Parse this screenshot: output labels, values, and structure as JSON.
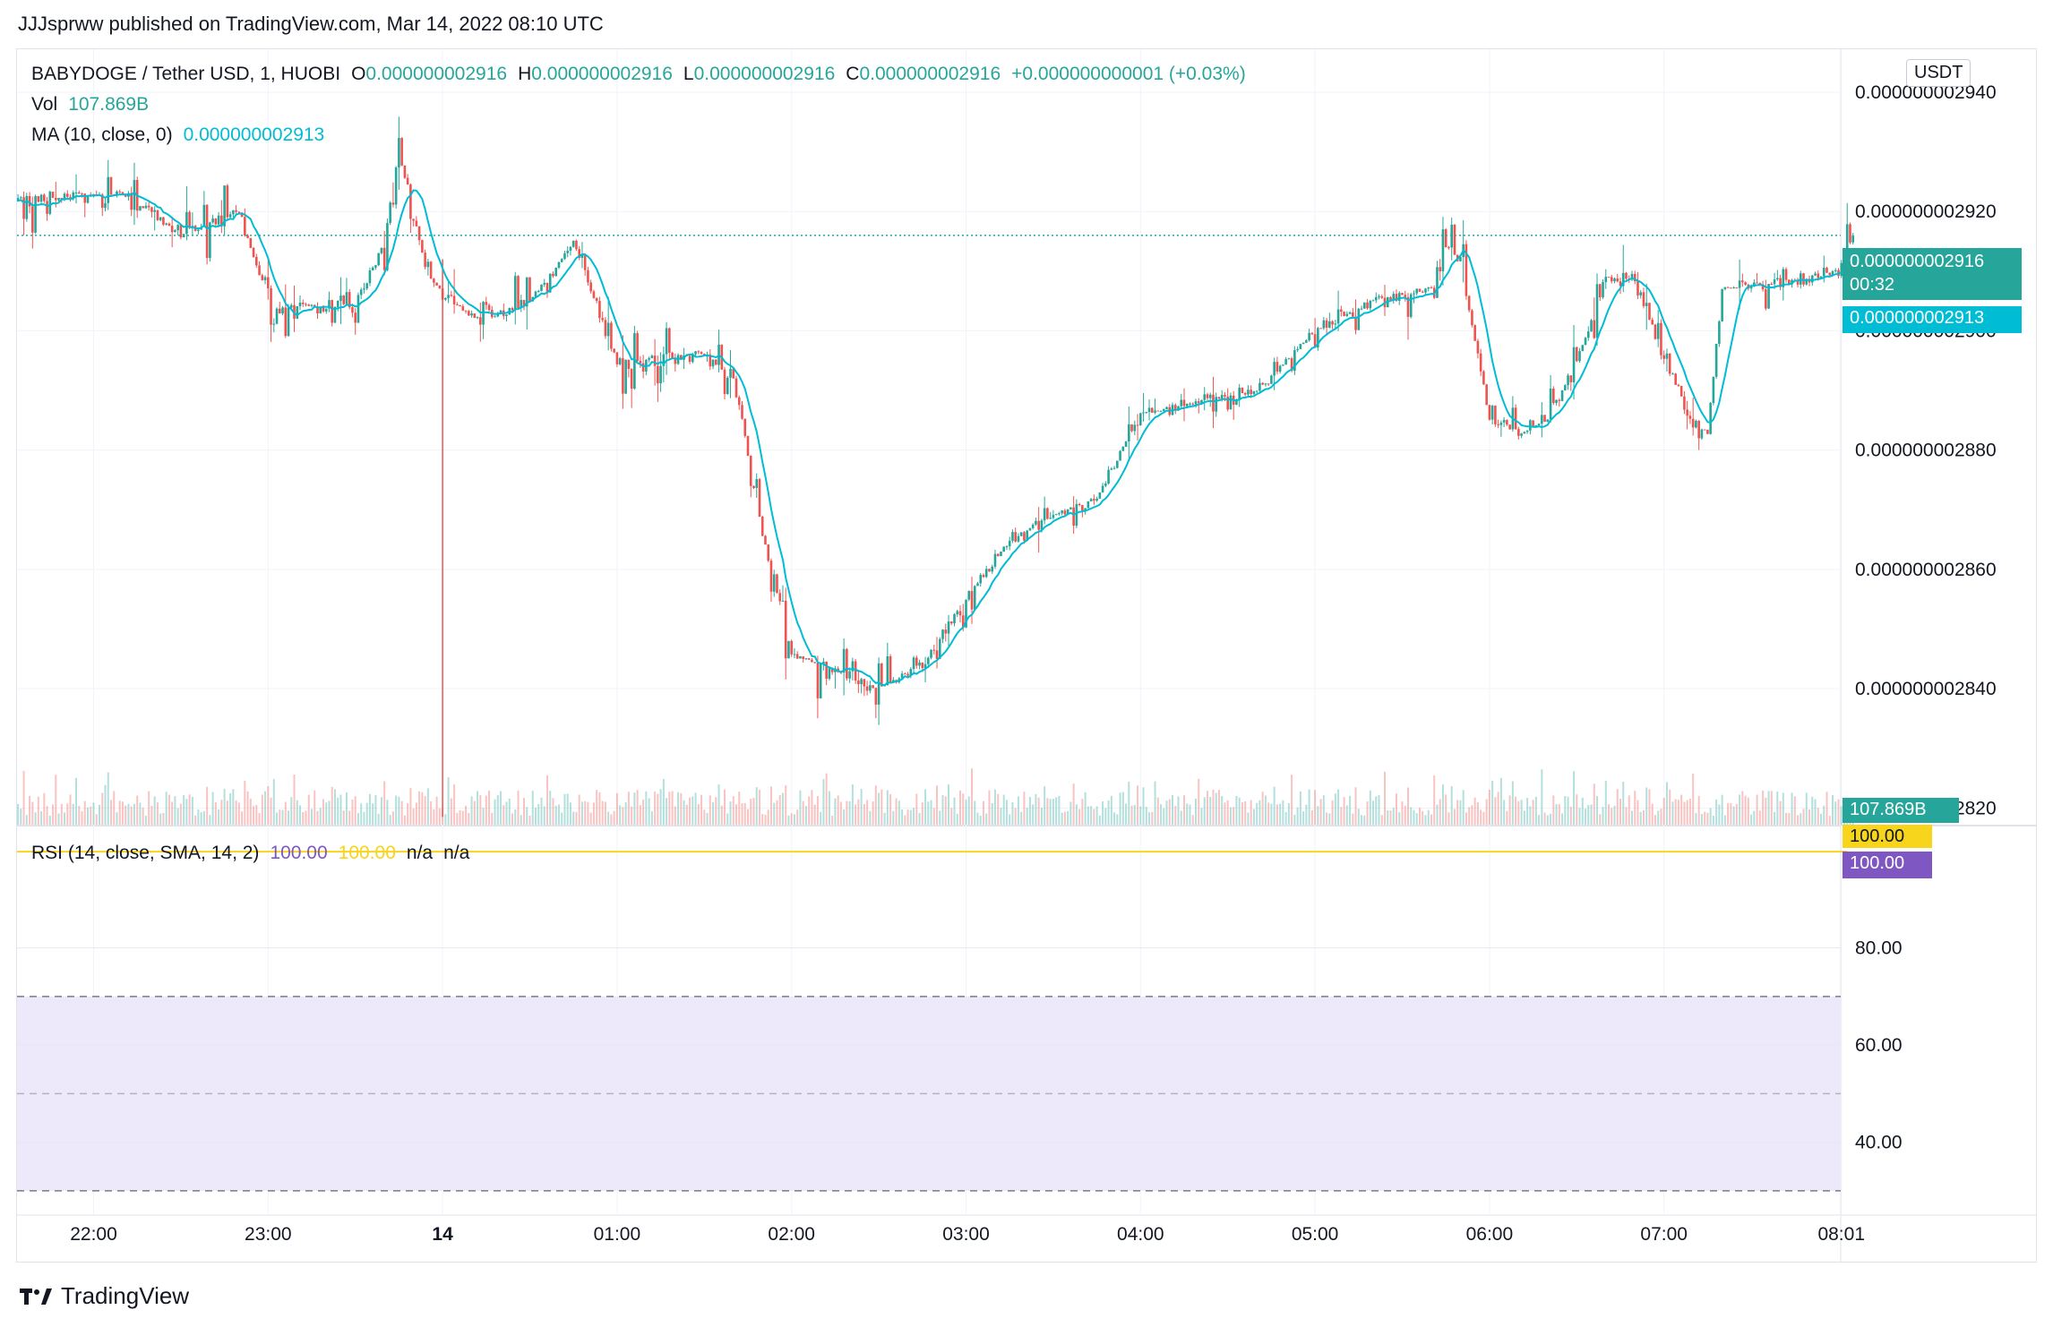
{
  "header": {
    "text": "JJJsprww published on TradingView.com, Mar 14, 2022 08:10 UTC"
  },
  "legend": {
    "symbol": "BABYDOGE / Tether USD, 1, HUOBI",
    "o_label": "O",
    "o_value": "0.000000002916",
    "h_label": "H",
    "h_value": "0.000000002916",
    "l_label": "L",
    "l_value": "0.000000002916",
    "c_label": "C",
    "c_value": "0.000000002916",
    "change": "+0.000000000001 (+0.03%)",
    "vol_label": "Vol",
    "vol_value": "107.869B",
    "ma_label": "MA (10, close, 0)",
    "ma_value": "0.000000002913",
    "rsi_label": "RSI (14, close, SMA, 14, 2)",
    "rsi_value": "100.00",
    "rsi_sma_value": "100.00",
    "rsi_na1": "n/a",
    "rsi_na2": "n/a"
  },
  "tags": {
    "price": "0.000000002916",
    "countdown": "00:32",
    "ma": "0.000000002913",
    "volume": "107.869B",
    "rsi_sma": "100.00",
    "rsi": "100.00"
  },
  "currency_button": "USDT",
  "brand": "TradingView",
  "colors": {
    "up": "#26a69a",
    "down": "#ef5350",
    "ma": "#00bcd4",
    "rsi": "#7e57c2",
    "rsi_sma": "#f7d51d",
    "band": "#ede9fa"
  },
  "chart_data": [
    {
      "type": "candlestick",
      "title": "BABYDOGE / Tether USD, 1, HUOBI",
      "x_ticks": [
        "22:00",
        "23:00",
        "14",
        "01:00",
        "02:00",
        "03:00",
        "04:00",
        "05:00",
        "06:00",
        "07:00",
        "08:01"
      ],
      "y_ticks": [
        "0.000000002940",
        "0.000000002920",
        "0.000000002900",
        "0.000000002880",
        "0.000000002860",
        "0.000000002840",
        "0.000000002820"
      ],
      "ylim": [
        2.8175e-09,
        2.9475e-09
      ],
      "price_path": {
        "times": [
          "21:35",
          "22:10",
          "22:30",
          "22:50",
          "23:00",
          "23:30",
          "23:40",
          "23:45",
          "23:55",
          "00:10",
          "00:30",
          "00:45",
          "01:00",
          "01:30",
          "01:40",
          "01:50",
          "02:00",
          "02:15",
          "02:30",
          "02:45",
          "03:00",
          "03:15",
          "03:30",
          "03:45",
          "04:00",
          "04:20",
          "04:40",
          "05:00",
          "05:20",
          "05:40",
          "05:45",
          "05:50",
          "06:00",
          "06:10",
          "06:20",
          "06:30",
          "06:40",
          "06:50",
          "07:00",
          "07:10",
          "07:15",
          "07:20",
          "07:40",
          "08:00",
          "08:05"
        ],
        "values": [
          2.922e-09,
          2.923e-09,
          2.916e-09,
          2.9205e-09,
          2.904e-09,
          2.904e-09,
          2.915e-09,
          2.93e-09,
          2.909e-09,
          2.902e-09,
          2.905e-09,
          2.915e-09,
          2.895e-09,
          2.896e-09,
          2.892e-09,
          2.866e-09,
          2.846e-09,
          2.843e-09,
          2.84e-09,
          2.844e-09,
          2.855e-09,
          2.865e-09,
          2.869e-09,
          2.872e-09,
          2.886e-09,
          2.888e-09,
          2.89e-09,
          2.9e-09,
          2.905e-09,
          2.907e-09,
          2.914e-09,
          2.912e-09,
          2.885e-09,
          2.883e-09,
          2.885e-09,
          2.895e-09,
          2.909e-09,
          2.909e-09,
          2.895e-09,
          2.885e-09,
          2.883e-09,
          2.907e-09,
          2.908e-09,
          2.91e-09,
          2.916e-09
        ]
      },
      "last_price": 2.916e-09,
      "ma": {
        "period": 10,
        "last": 2.913e-09
      },
      "volume": {
        "last": "107.869B"
      }
    },
    {
      "type": "line",
      "title": "RSI (14, close, SMA, 14, 2)",
      "y_ticks": [
        "80.00",
        "60.00",
        "40.00"
      ],
      "ylim": [
        25,
        105
      ],
      "band": [
        30,
        70
      ],
      "midline": 50,
      "series": [
        {
          "name": "RSI",
          "value": 100.0
        },
        {
          "name": "RSI-based MA",
          "value": 100.0
        }
      ]
    }
  ]
}
